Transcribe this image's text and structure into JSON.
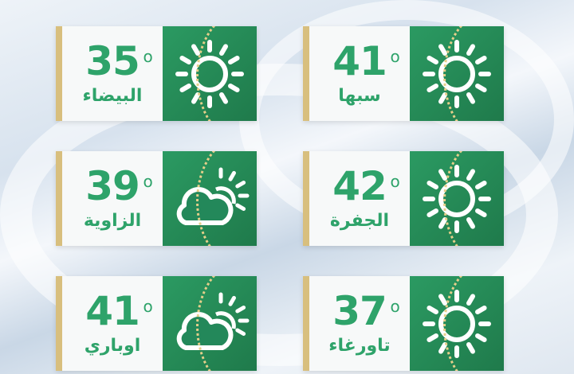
{
  "cards": [
    {
      "city": "البيضاء",
      "temp": "35",
      "degree": "o",
      "icon": "sun-icon"
    },
    {
      "city": "سبها",
      "temp": "41",
      "degree": "o",
      "icon": "sun-icon"
    },
    {
      "city": "الزاوية",
      "temp": "39",
      "degree": "o",
      "icon": "partly-cloudy-icon"
    },
    {
      "city": "الجفرة",
      "temp": "42",
      "degree": "o",
      "icon": "sun-icon"
    },
    {
      "city": "اوباري",
      "temp": "41",
      "degree": "o",
      "icon": "partly-cloudy-icon"
    },
    {
      "city": "تاورغاء",
      "temp": "37",
      "degree": "o",
      "icon": "sun-icon"
    }
  ],
  "colors": {
    "accent": "#2ea36a",
    "panel": "#1f7a4b",
    "gold": "#d8bf7e"
  }
}
